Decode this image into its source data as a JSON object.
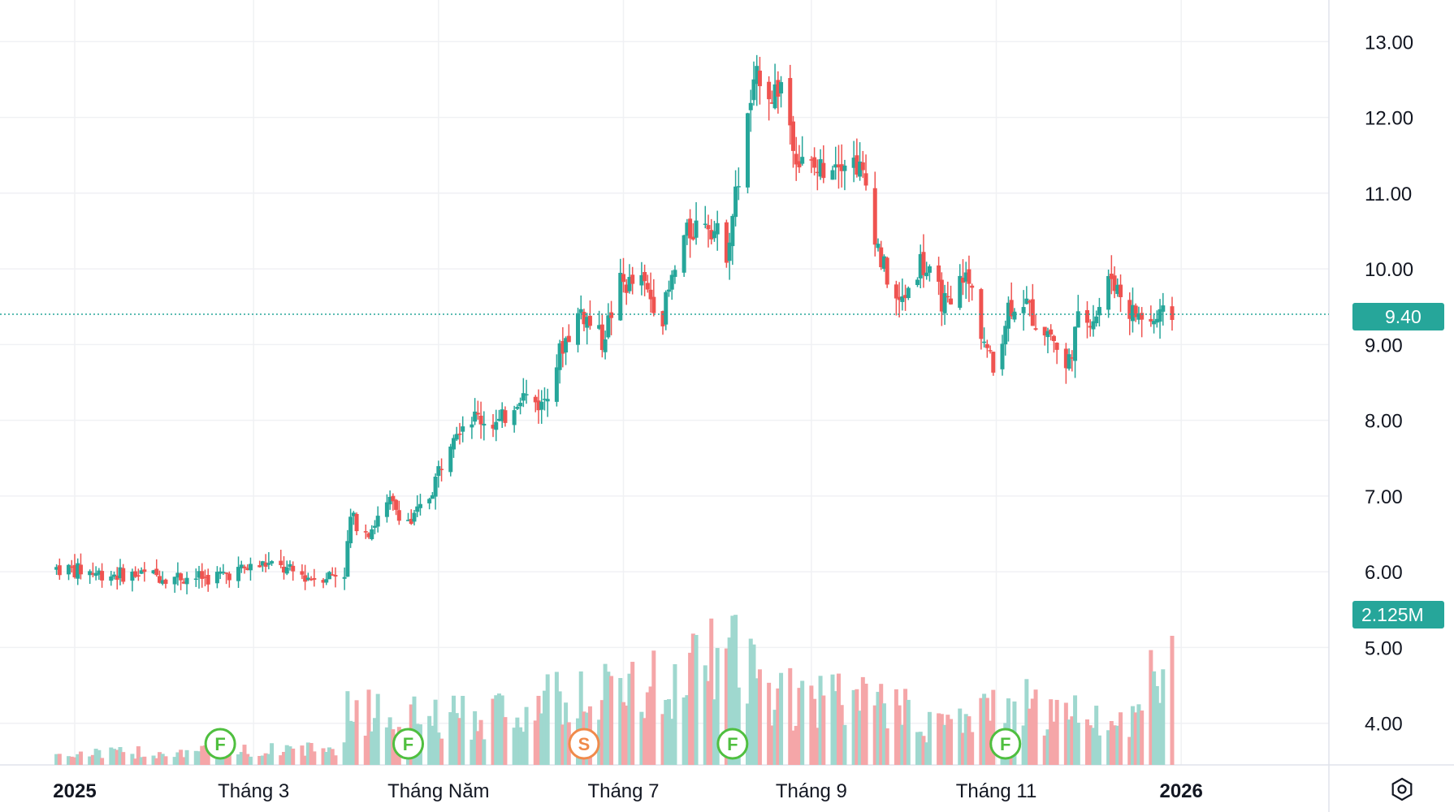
{
  "chart_data": {
    "type": "candlestick",
    "x_tick_labels": [
      "2025",
      "Tháng 3",
      "Tháng Năm",
      "Tháng 7",
      "Tháng 9",
      "Tháng 11",
      "2026"
    ],
    "y_tick_labels": [
      "13.00",
      "12.00",
      "11.00",
      "10.00",
      "9.00",
      "8.00",
      "7.00",
      "6.00",
      "5.00",
      "4.00"
    ],
    "ylim": [
      3.45,
      13.55
    ],
    "last_price": "9.40",
    "last_price_value": 9.4,
    "last_volume": "2.125M",
    "colors": {
      "up": "#26a69a",
      "down": "#ef5350",
      "up_volume": "#9fd8cf",
      "down_volume": "#f5a6a8",
      "event_F": "#4fbf3f",
      "event_S": "#f08a4b",
      "badge": "#26a69a",
      "price_line": "#26a69a"
    },
    "events": [
      {
        "label": "F",
        "x": "2025-02-18",
        "type": "F"
      },
      {
        "label": "F",
        "x": "2025-04-21",
        "type": "F"
      },
      {
        "label": "S",
        "x": "2025-06-18",
        "type": "S"
      },
      {
        "label": "F",
        "x": "2025-08-06",
        "type": "F"
      },
      {
        "label": "F",
        "x": "2025-11-04",
        "type": "F"
      }
    ],
    "waypoints": [
      [
        "2024-12-26",
        6.05
      ],
      [
        "2025-01-10",
        5.98
      ],
      [
        "2025-02-14",
        5.92
      ],
      [
        "2025-03-05",
        6.1
      ],
      [
        "2025-03-20",
        5.92
      ],
      [
        "2025-03-31",
        6.0
      ],
      [
        "2025-04-02",
        6.7
      ],
      [
        "2025-04-08",
        6.55
      ],
      [
        "2025-04-15",
        6.9
      ],
      [
        "2025-04-22",
        6.65
      ],
      [
        "2025-04-28",
        7.0
      ],
      [
        "2025-05-06",
        7.9
      ],
      [
        "2025-05-12",
        8.05
      ],
      [
        "2025-05-21",
        7.95
      ],
      [
        "2025-05-28",
        8.35
      ],
      [
        "2025-06-04",
        8.2
      ],
      [
        "2025-06-11",
        9.0
      ],
      [
        "2025-06-17",
        9.45
      ],
      [
        "2025-06-24",
        9.05
      ],
      [
        "2025-06-30",
        9.8
      ],
      [
        "2025-07-07",
        9.8
      ],
      [
        "2025-07-14",
        9.4
      ],
      [
        "2025-07-21",
        10.4
      ],
      [
        "2025-07-28",
        10.7
      ],
      [
        "2025-08-04",
        10.25
      ],
      [
        "2025-08-08",
        11.2
      ],
      [
        "2025-08-12",
        12.2
      ],
      [
        "2025-08-15",
        12.6
      ],
      [
        "2025-08-19",
        12.3
      ],
      [
        "2025-08-22",
        12.45
      ],
      [
        "2025-08-28",
        11.4
      ],
      [
        "2025-09-03",
        11.3
      ],
      [
        "2025-09-10",
        11.5
      ],
      [
        "2025-09-16",
        11.4
      ],
      [
        "2025-09-19",
        11.1
      ],
      [
        "2025-09-24",
        10.1
      ],
      [
        "2025-09-30",
        9.5
      ],
      [
        "2025-10-07",
        10.1
      ],
      [
        "2025-10-14",
        9.6
      ],
      [
        "2025-10-17",
        9.45
      ],
      [
        "2025-10-21",
        9.95
      ],
      [
        "2025-10-24",
        9.7
      ],
      [
        "2025-10-27",
        9.2
      ],
      [
        "2025-10-31",
        8.65
      ],
      [
        "2025-11-05",
        9.5
      ],
      [
        "2025-11-10",
        9.6
      ],
      [
        "2025-11-14",
        9.3
      ],
      [
        "2025-11-19",
        9.15
      ],
      [
        "2025-11-24",
        8.65
      ],
      [
        "2025-11-28",
        9.3
      ],
      [
        "2025-12-04",
        9.4
      ],
      [
        "2025-12-09",
        9.9
      ],
      [
        "2025-12-15",
        9.45
      ],
      [
        "2025-12-22",
        9.3
      ],
      [
        "2025-12-29",
        9.4
      ]
    ],
    "volume_waypoints": [
      [
        "2024-12-26",
        0.2
      ],
      [
        "2025-03-31",
        0.3
      ],
      [
        "2025-04-01",
        1.0
      ],
      [
        "2025-05-01",
        0.8
      ],
      [
        "2025-06-15",
        1.2
      ],
      [
        "2025-07-15",
        1.5
      ],
      [
        "2025-08-07",
        2.0
      ],
      [
        "2025-08-20",
        1.2
      ],
      [
        "2025-09-25",
        1.1
      ],
      [
        "2025-10-15",
        0.7
      ],
      [
        "2025-11-05",
        1.1
      ],
      [
        "2025-12-15",
        0.8
      ],
      [
        "2025-12-29",
        2.125
      ]
    ]
  },
  "ui": {
    "settings_icon": "settings-hexagon-icon"
  }
}
